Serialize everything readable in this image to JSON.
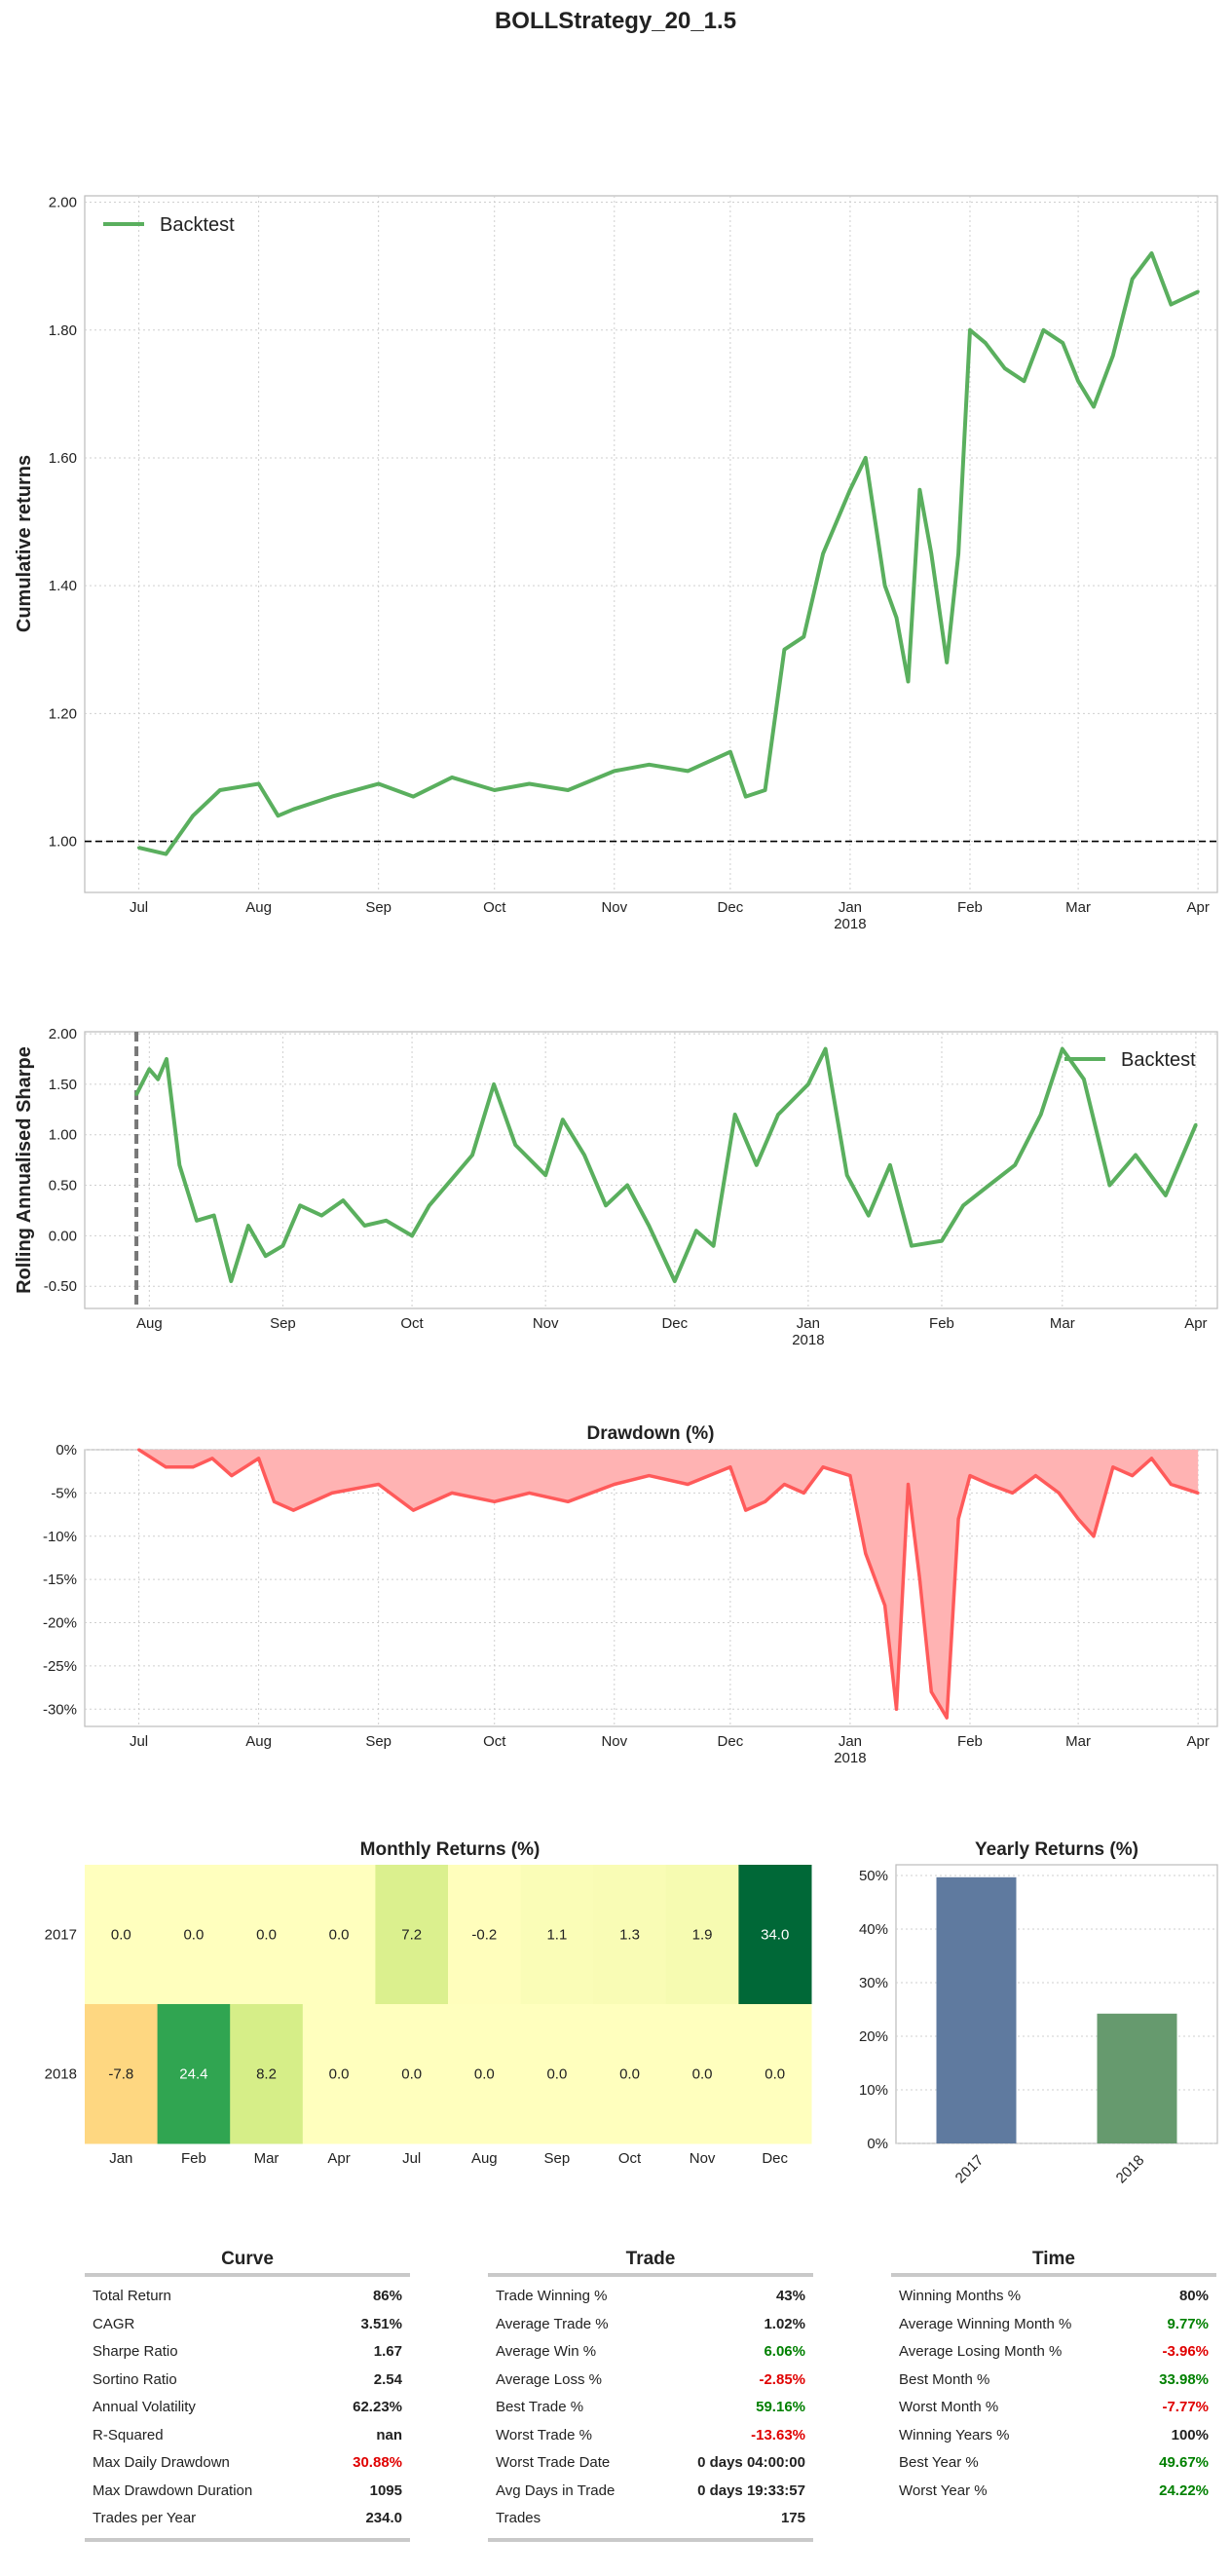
{
  "suptitle": "BOLLStrategy_20_1.5",
  "colors": {
    "line": "#5aaf5e",
    "drawdown_fill": "#ffb3b3",
    "drawdown_line": "#ff5a5a",
    "bar_2017": "#5f7a9f",
    "bar_2018": "#669a6e",
    "positive": "#008000",
    "negative": "#e00000",
    "grid": "#cfcfcf"
  },
  "chart_data": [
    {
      "id": "cumulative",
      "type": "line",
      "title": "",
      "ylabel": "Cumulative returns",
      "xlabel": "",
      "ylim": [
        0.92,
        2.01
      ],
      "yticks": [
        "1.00",
        "1.20",
        "1.40",
        "1.60",
        "1.80",
        "2.00"
      ],
      "xticks": [
        "Jul",
        "Aug",
        "Sep",
        "Oct",
        "Nov",
        "Dec",
        "Jan",
        "Feb",
        "Mar",
        "Apr"
      ],
      "xtick_year": "2018",
      "baseline": 1.0,
      "legend": "top-left",
      "grid": true,
      "series": [
        {
          "name": "Backtest",
          "x": [
            "2017-07-01",
            "2017-07-08",
            "2017-07-15",
            "2017-07-22",
            "2017-08-01",
            "2017-08-06",
            "2017-08-10",
            "2017-08-20",
            "2017-09-01",
            "2017-09-10",
            "2017-09-20",
            "2017-10-01",
            "2017-10-10",
            "2017-10-20",
            "2017-11-01",
            "2017-11-10",
            "2017-11-20",
            "2017-12-01",
            "2017-12-05",
            "2017-12-10",
            "2017-12-15",
            "2017-12-20",
            "2017-12-25",
            "2018-01-01",
            "2018-01-05",
            "2018-01-10",
            "2018-01-13",
            "2018-01-16",
            "2018-01-19",
            "2018-01-22",
            "2018-01-26",
            "2018-01-29",
            "2018-02-01",
            "2018-02-05",
            "2018-02-10",
            "2018-02-15",
            "2018-02-20",
            "2018-02-25",
            "2018-03-01",
            "2018-03-05",
            "2018-03-10",
            "2018-03-15",
            "2018-03-20",
            "2018-03-25",
            "2018-04-01"
          ],
          "y": [
            0.99,
            0.98,
            1.04,
            1.08,
            1.09,
            1.04,
            1.05,
            1.07,
            1.09,
            1.07,
            1.1,
            1.08,
            1.09,
            1.08,
            1.11,
            1.12,
            1.11,
            1.14,
            1.07,
            1.08,
            1.3,
            1.32,
            1.45,
            1.55,
            1.6,
            1.4,
            1.35,
            1.25,
            1.55,
            1.45,
            1.28,
            1.45,
            1.8,
            1.78,
            1.74,
            1.72,
            1.8,
            1.78,
            1.72,
            1.68,
            1.76,
            1.88,
            1.92,
            1.84,
            1.86
          ]
        }
      ]
    },
    {
      "id": "rolling_sharpe",
      "type": "line",
      "title": "",
      "ylabel": "Rolling Annualised Sharpe",
      "xlabel": "",
      "ylim": [
        -0.72,
        2.02
      ],
      "yticks": [
        "-0.50",
        "0.00",
        "0.50",
        "1.00",
        "1.50",
        "2.00"
      ],
      "xticks": [
        "Aug",
        "Sep",
        "Oct",
        "Nov",
        "Dec",
        "Jan",
        "Feb",
        "Mar",
        "Apr"
      ],
      "xtick_year": "2018",
      "legend": "top-right",
      "grid": true,
      "series": [
        {
          "name": "Backtest",
          "x": [
            "2017-07-29",
            "2017-08-01",
            "2017-08-03",
            "2017-08-05",
            "2017-08-08",
            "2017-08-12",
            "2017-08-16",
            "2017-08-20",
            "2017-08-24",
            "2017-08-28",
            "2017-09-01",
            "2017-09-05",
            "2017-09-10",
            "2017-09-15",
            "2017-09-20",
            "2017-09-25",
            "2017-10-01",
            "2017-10-05",
            "2017-10-10",
            "2017-10-15",
            "2017-10-20",
            "2017-10-25",
            "2017-11-01",
            "2017-11-05",
            "2017-11-10",
            "2017-11-15",
            "2017-11-20",
            "2017-11-25",
            "2017-12-01",
            "2017-12-06",
            "2017-12-10",
            "2017-12-15",
            "2017-12-20",
            "2017-12-25",
            "2018-01-01",
            "2018-01-05",
            "2018-01-10",
            "2018-01-15",
            "2018-01-20",
            "2018-01-25",
            "2018-02-01",
            "2018-02-06",
            "2018-02-12",
            "2018-02-18",
            "2018-02-24",
            "2018-03-01",
            "2018-03-06",
            "2018-03-12",
            "2018-03-18",
            "2018-03-25",
            "2018-04-01"
          ],
          "y": [
            1.4,
            1.65,
            1.55,
            1.75,
            0.7,
            0.15,
            0.2,
            -0.45,
            0.1,
            -0.2,
            -0.1,
            0.3,
            0.2,
            0.35,
            0.1,
            0.15,
            0.0,
            0.3,
            0.55,
            0.8,
            1.5,
            0.9,
            0.6,
            1.15,
            0.8,
            0.3,
            0.5,
            0.1,
            -0.45,
            0.05,
            -0.1,
            1.2,
            0.7,
            1.2,
            1.5,
            1.85,
            0.6,
            0.2,
            0.7,
            -0.1,
            -0.05,
            0.3,
            0.5,
            0.7,
            1.2,
            1.85,
            1.55,
            0.5,
            0.8,
            0.4,
            1.1
          ]
        }
      ]
    },
    {
      "id": "drawdown",
      "type": "area",
      "title": "Drawdown (%)",
      "ylabel": "",
      "xlabel": "",
      "ylim": [
        -32,
        0
      ],
      "yticks": [
        "0%",
        "-5%",
        "-10%",
        "-15%",
        "-20%",
        "-25%",
        "-30%"
      ],
      "xticks": [
        "Jul",
        "Aug",
        "Sep",
        "Oct",
        "Nov",
        "Dec",
        "Jan",
        "Feb",
        "Mar",
        "Apr"
      ],
      "xtick_year": "2018",
      "grid": true,
      "series": [
        {
          "x": [
            "2017-07-01",
            "2017-07-08",
            "2017-07-15",
            "2017-07-20",
            "2017-07-25",
            "2017-08-01",
            "2017-08-05",
            "2017-08-10",
            "2017-08-20",
            "2017-09-01",
            "2017-09-10",
            "2017-09-20",
            "2017-10-01",
            "2017-10-10",
            "2017-10-20",
            "2017-11-01",
            "2017-11-10",
            "2017-11-20",
            "2017-12-01",
            "2017-12-05",
            "2017-12-10",
            "2017-12-15",
            "2017-12-20",
            "2017-12-25",
            "2018-01-01",
            "2018-01-05",
            "2018-01-10",
            "2018-01-13",
            "2018-01-16",
            "2018-01-19",
            "2018-01-22",
            "2018-01-26",
            "2018-01-29",
            "2018-02-01",
            "2018-02-06",
            "2018-02-12",
            "2018-02-18",
            "2018-02-24",
            "2018-03-01",
            "2018-03-05",
            "2018-03-10",
            "2018-03-15",
            "2018-03-20",
            "2018-03-25",
            "2018-04-01"
          ],
          "y": [
            0,
            -2,
            -2,
            -1,
            -3,
            -1,
            -6,
            -7,
            -5,
            -4,
            -7,
            -5,
            -6,
            -5,
            -6,
            -4,
            -3,
            -4,
            -2,
            -7,
            -6,
            -4,
            -5,
            -2,
            -3,
            -12,
            -18,
            -30,
            -4,
            -15,
            -28,
            -31,
            -8,
            -3,
            -4,
            -5,
            -3,
            -5,
            -8,
            -10,
            -2,
            -3,
            -1,
            -4,
            -5
          ]
        }
      ]
    },
    {
      "id": "monthly_returns",
      "type": "heatmap",
      "title": "Monthly Returns (%)",
      "columns": [
        "Jan",
        "Feb",
        "Mar",
        "Apr",
        "Jul",
        "Aug",
        "Sep",
        "Oct",
        "Nov",
        "Dec"
      ],
      "rows": [
        "2017",
        "2018"
      ],
      "values": [
        [
          "0.0",
          "0.0",
          "0.0",
          "0.0",
          "7.2",
          "-0.2",
          "1.1",
          "1.3",
          "1.9",
          "34.0"
        ],
        [
          "-7.8",
          "24.4",
          "8.2",
          "0.0",
          "0.0",
          "0.0",
          "0.0",
          "0.0",
          "0.0",
          "0.0"
        ]
      ]
    },
    {
      "id": "yearly_returns",
      "type": "bar",
      "title": "Yearly Returns (%)",
      "categories": [
        "2017",
        "2018"
      ],
      "values": [
        49.67,
        24.22
      ],
      "ylim": [
        0,
        52
      ],
      "yticks": [
        "0%",
        "10%",
        "20%",
        "30%",
        "40%",
        "50%"
      ],
      "grid": true
    }
  ],
  "stats": [
    {
      "title": "Curve",
      "rows": [
        {
          "label": "Total Return",
          "value": "86%",
          "tone": ""
        },
        {
          "label": "CAGR",
          "value": "3.51%",
          "tone": ""
        },
        {
          "label": "Sharpe Ratio",
          "value": "1.67",
          "tone": ""
        },
        {
          "label": "Sortino Ratio",
          "value": "2.54",
          "tone": ""
        },
        {
          "label": "Annual Volatility",
          "value": "62.23%",
          "tone": ""
        },
        {
          "label": "R-Squared",
          "value": "nan",
          "tone": ""
        },
        {
          "label": "Max Daily Drawdown",
          "value": "30.88%",
          "tone": "neg"
        },
        {
          "label": "Max Drawdown Duration",
          "value": "1095",
          "tone": ""
        },
        {
          "label": "Trades per Year",
          "value": "234.0",
          "tone": ""
        }
      ]
    },
    {
      "title": "Trade",
      "rows": [
        {
          "label": "Trade Winning %",
          "value": "43%",
          "tone": ""
        },
        {
          "label": "Average Trade %",
          "value": "1.02%",
          "tone": ""
        },
        {
          "label": "Average Win %",
          "value": "6.06%",
          "tone": "pos"
        },
        {
          "label": "Average Loss %",
          "value": "-2.85%",
          "tone": "neg"
        },
        {
          "label": "Best Trade %",
          "value": "59.16%",
          "tone": "pos"
        },
        {
          "label": "Worst Trade %",
          "value": "-13.63%",
          "tone": "neg"
        },
        {
          "label": "Worst Trade Date",
          "value": "0 days 04:00:00",
          "tone": ""
        },
        {
          "label": "Avg Days in Trade",
          "value": "0 days 19:33:57",
          "tone": ""
        },
        {
          "label": "Trades",
          "value": "175",
          "tone": ""
        }
      ]
    },
    {
      "title": "Time",
      "rows": [
        {
          "label": "Winning Months %",
          "value": "80%",
          "tone": ""
        },
        {
          "label": "Average Winning Month %",
          "value": "9.77%",
          "tone": "pos"
        },
        {
          "label": "Average Losing Month %",
          "value": "-3.96%",
          "tone": "neg"
        },
        {
          "label": "Best Month %",
          "value": "33.98%",
          "tone": "pos"
        },
        {
          "label": "Worst Month %",
          "value": "-7.77%",
          "tone": "neg"
        },
        {
          "label": "Winning Years %",
          "value": "100%",
          "tone": ""
        },
        {
          "label": "Best Year %",
          "value": "49.67%",
          "tone": "pos"
        },
        {
          "label": "Worst Year %",
          "value": "24.22%",
          "tone": "pos"
        }
      ]
    }
  ]
}
